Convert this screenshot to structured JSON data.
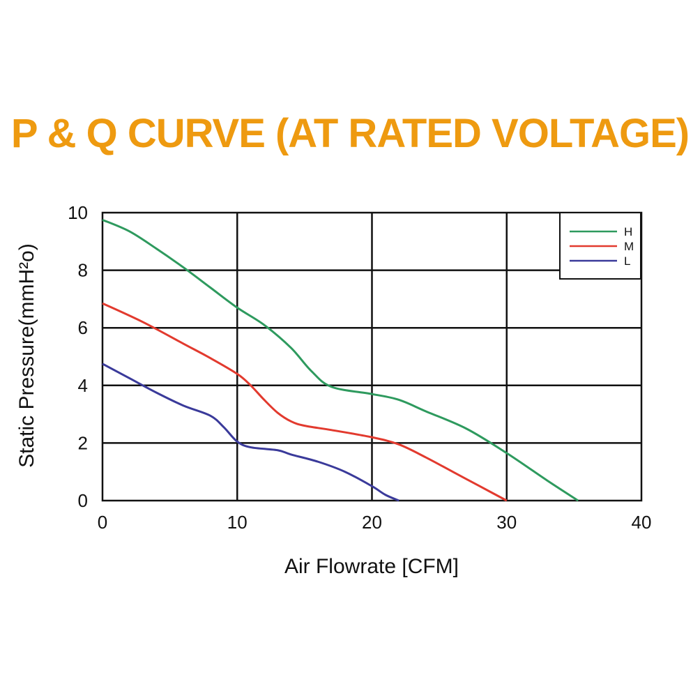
{
  "title": "P & Q CURVE (AT RATED VOLTAGE)",
  "colors": {
    "title": "#ee9a10",
    "grid": "#111111",
    "H": "#2e9a5e",
    "M": "#e23a2e",
    "L": "#3a3a9a"
  },
  "chart_data": {
    "type": "line",
    "title": "P & Q CURVE (AT RATED VOLTAGE)",
    "xlabel": "Air  Flowrate   [CFM]",
    "ylabel": "Static Pressure(mmH²o)",
    "xlim": [
      0,
      40
    ],
    "ylim": [
      0,
      10
    ],
    "x_ticks": [
      "0",
      "10",
      "20",
      "30",
      "40"
    ],
    "y_ticks": [
      "0",
      "2",
      "4",
      "6",
      "8",
      "10"
    ],
    "grid": true,
    "legend_position": "top-right",
    "series": [
      {
        "name": "H",
        "x": [
          0,
          2,
          4,
          6,
          8,
          10,
          12,
          14,
          15.5,
          17,
          20,
          22,
          24,
          27,
          30,
          33,
          35.3
        ],
        "y": [
          9.75,
          9.35,
          8.75,
          8.1,
          7.4,
          6.7,
          6.1,
          5.3,
          4.5,
          3.95,
          3.7,
          3.5,
          3.1,
          2.5,
          1.65,
          0.7,
          0
        ]
      },
      {
        "name": "M",
        "x": [
          0,
          3,
          6,
          8,
          10,
          11,
          12,
          13,
          14,
          15,
          17,
          20,
          22,
          24,
          26,
          28,
          30
        ],
        "y": [
          6.85,
          6.2,
          5.45,
          4.95,
          4.4,
          4.0,
          3.5,
          3.05,
          2.75,
          2.6,
          2.45,
          2.2,
          1.95,
          1.5,
          1.0,
          0.5,
          0
        ]
      },
      {
        "name": "L",
        "x": [
          0,
          2,
          4,
          6,
          8,
          9,
          10,
          11,
          13,
          14,
          16,
          18,
          20,
          21,
          22
        ],
        "y": [
          4.75,
          4.25,
          3.75,
          3.3,
          2.95,
          2.55,
          2.05,
          1.85,
          1.75,
          1.6,
          1.35,
          1.0,
          0.5,
          0.2,
          0
        ]
      }
    ]
  }
}
